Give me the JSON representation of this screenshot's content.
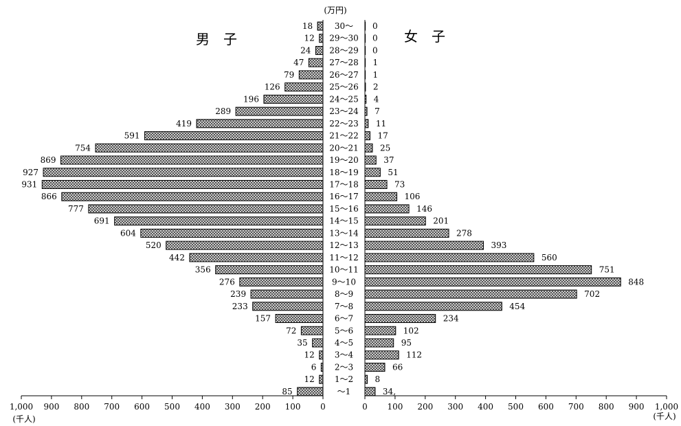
{
  "chart_data": {
    "type": "bar",
    "unit_label": "(万円)",
    "categories": [
      "30～",
      "29～30",
      "28～29",
      "27～28",
      "26～27",
      "25～26",
      "24～25",
      "23～24",
      "22～23",
      "21～22",
      "20～21",
      "19～20",
      "18～19",
      "17～18",
      "16～17",
      "15～16",
      "14～15",
      "13～14",
      "12～13",
      "11～12",
      "10～11",
      "9～10",
      "8～9",
      "7～8",
      "6～7",
      "5～6",
      "4～5",
      "3～4",
      "2～3",
      "1～2",
      "～1"
    ],
    "series": [
      {
        "name": "男　子",
        "values": [
          18,
          12,
          24,
          47,
          79,
          126,
          196,
          289,
          419,
          591,
          754,
          869,
          927,
          931,
          866,
          777,
          691,
          604,
          520,
          442,
          356,
          276,
          239,
          233,
          157,
          72,
          35,
          12,
          6,
          12,
          85
        ]
      },
      {
        "name": "女　子",
        "values": [
          0,
          0,
          0,
          1,
          1,
          2,
          4,
          7,
          11,
          17,
          25,
          37,
          51,
          73,
          106,
          146,
          201,
          278,
          393,
          560,
          751,
          848,
          702,
          454,
          234,
          102,
          95,
          112,
          66,
          8,
          34
        ]
      }
    ],
    "value_labels_female": [
      "0",
      "0",
      "0",
      "1",
      "1",
      "2",
      "4",
      "7",
      "11",
      "17",
      "25",
      "37",
      "51",
      "73",
      "106",
      "146",
      "201",
      "278",
      "393",
      "560",
      "751",
      "848",
      "702",
      "454",
      "234",
      "102",
      "95",
      "112",
      "66",
      "8",
      "34,"
    ],
    "left_axis": {
      "ticks": [
        "1,000",
        "900",
        "800",
        "700",
        "600",
        "500",
        "400",
        "300",
        "200",
        "100",
        "0"
      ],
      "unit": "(千人)",
      "range": [
        0,
        1000
      ]
    },
    "right_axis": {
      "ticks": [
        "0",
        "100",
        "200",
        "300",
        "400",
        "500",
        "600",
        "700",
        "800",
        "900",
        "1,000"
      ],
      "unit": "(千人)",
      "range": [
        0,
        1000
      ]
    },
    "legend": "none",
    "grid": false
  }
}
